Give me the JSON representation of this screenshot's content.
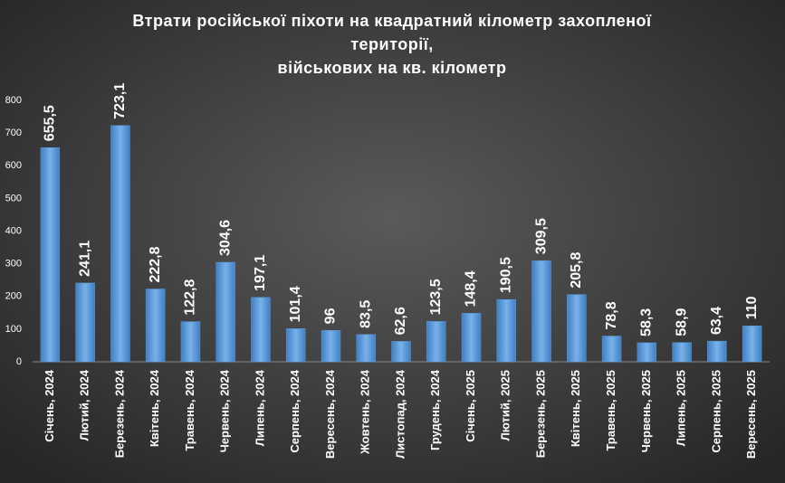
{
  "chart_data": {
    "type": "bar",
    "title": [
      "Втрати російської піхоти на квадратний кілометр захопленої",
      "території,",
      "військових на кв. кілометр"
    ],
    "categories": [
      "Січень, 2024",
      "Лютий, 2024",
      "Березень, 2024",
      "Квітень, 2024",
      "Травень, 2024",
      "Червень, 2024",
      "Липень, 2024",
      "Серпень, 2024",
      "Вересень, 2024",
      "Жовтень, 2024",
      "Листопад, 2024",
      "Грудень, 2024",
      "Січень, 2025",
      "Лютий, 2025",
      "Березень, 2025",
      "Квітень, 2025",
      "Травень, 2025",
      "Червень, 2025",
      "Липень, 2025",
      "Серпень, 2025",
      "Вересень, 2025"
    ],
    "values": [
      655.5,
      241.1,
      723.1,
      222.8,
      122.8,
      304.6,
      197.1,
      101.4,
      96,
      83.5,
      62.6,
      123.5,
      148.4,
      190.5,
      309.5,
      205.8,
      78.8,
      58.3,
      58.9,
      63.4,
      110
    ],
    "value_labels": [
      "655,5",
      "241,1",
      "723,1",
      "222,8",
      "122,8",
      "304,6",
      "197,1",
      "101,4",
      "96",
      "83,5",
      "62,6",
      "123,5",
      "148,4",
      "190,5",
      "309,5",
      "205,8",
      "78,8",
      "58,3",
      "58,9",
      "63,4",
      "110"
    ],
    "color": "#5b9bd5",
    "ylim": [
      0,
      800
    ],
    "yticks": [
      0,
      100,
      200,
      300,
      400,
      500,
      600,
      700,
      800
    ],
    "grid": false
  }
}
